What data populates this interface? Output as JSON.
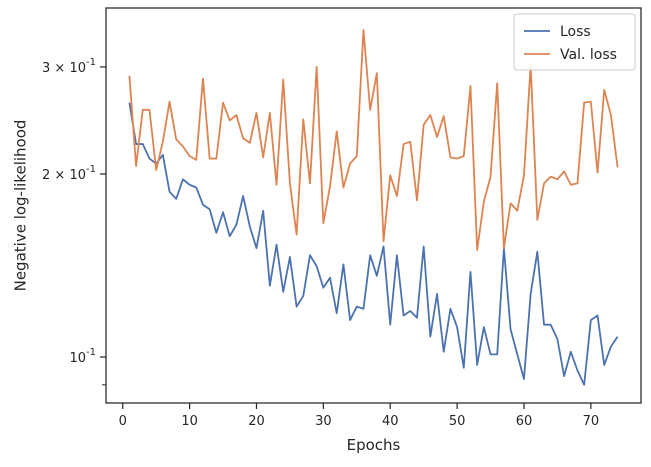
{
  "chart_data": {
    "type": "line",
    "title": "",
    "xlabel": "Epochs",
    "ylabel": "Negative log-likelihood",
    "yscale": "log",
    "xlim": [
      -2.5,
      77.5
    ],
    "ylim": [
      0.084,
      0.375
    ],
    "xticks": [
      0,
      10,
      20,
      30,
      40,
      50,
      60,
      70
    ],
    "xtick_labels": [
      "0",
      "10",
      "20",
      "30",
      "40",
      "50",
      "60",
      "70"
    ],
    "yticks_major": [
      0.1,
      0.2,
      0.3
    ],
    "ytick_labels": [
      "10^{-1}",
      "2 × 10^{-1}",
      "3 × 10^{-1}"
    ],
    "yticks_minor": [
      0.09
    ],
    "grid": false,
    "legend_position": "top-right",
    "series": [
      {
        "name": "Loss",
        "color": "#4c72b0",
        "x": [
          1,
          2,
          3,
          4,
          5,
          6,
          7,
          8,
          9,
          10,
          11,
          12,
          13,
          14,
          15,
          16,
          17,
          18,
          19,
          20,
          21,
          22,
          23,
          24,
          25,
          26,
          27,
          28,
          29,
          30,
          31,
          32,
          33,
          34,
          35,
          36,
          37,
          38,
          39,
          40,
          41,
          42,
          43,
          44,
          45,
          46,
          47,
          48,
          49,
          50,
          51,
          52,
          53,
          54,
          55,
          56,
          57,
          58,
          59,
          60,
          61,
          62,
          63,
          64,
          65,
          66,
          67,
          68,
          69,
          70,
          71,
          72,
          73,
          74
        ],
        "values": [
          0.262,
          0.224,
          0.224,
          0.212,
          0.208,
          0.215,
          0.187,
          0.182,
          0.196,
          0.192,
          0.19,
          0.178,
          0.175,
          0.16,
          0.173,
          0.158,
          0.165,
          0.184,
          0.164,
          0.151,
          0.174,
          0.131,
          0.153,
          0.128,
          0.146,
          0.121,
          0.126,
          0.147,
          0.141,
          0.13,
          0.135,
          0.118,
          0.142,
          0.115,
          0.121,
          0.12,
          0.147,
          0.136,
          0.152,
          0.113,
          0.147,
          0.117,
          0.119,
          0.116,
          0.152,
          0.108,
          0.127,
          0.102,
          0.12,
          0.112,
          0.096,
          0.138,
          0.097,
          0.112,
          0.101,
          0.101,
          0.151,
          0.111,
          0.101,
          0.092,
          0.127,
          0.149,
          0.113,
          0.113,
          0.107,
          0.093,
          0.102,
          0.095,
          0.09,
          0.115,
          0.117,
          0.097,
          0.104,
          0.108
        ]
      },
      {
        "name": "Val. loss",
        "color": "#dd8452",
        "x": [
          1,
          2,
          3,
          4,
          5,
          6,
          7,
          8,
          9,
          10,
          11,
          12,
          13,
          14,
          15,
          16,
          17,
          18,
          19,
          20,
          21,
          22,
          23,
          24,
          25,
          26,
          27,
          28,
          29,
          30,
          31,
          32,
          33,
          34,
          35,
          36,
          37,
          38,
          39,
          40,
          41,
          42,
          43,
          44,
          45,
          46,
          47,
          48,
          49,
          50,
          51,
          52,
          53,
          54,
          55,
          56,
          57,
          58,
          59,
          60,
          61,
          62,
          63,
          64,
          65,
          66,
          67,
          68,
          69,
          70,
          71,
          72,
          73,
          74
        ],
        "values": [
          0.29,
          0.206,
          0.255,
          0.255,
          0.203,
          0.226,
          0.263,
          0.228,
          0.222,
          0.214,
          0.211,
          0.287,
          0.212,
          0.212,
          0.262,
          0.245,
          0.25,
          0.229,
          0.225,
          0.252,
          0.213,
          0.252,
          0.192,
          0.286,
          0.193,
          0.159,
          0.246,
          0.193,
          0.3,
          0.166,
          0.191,
          0.235,
          0.19,
          0.208,
          0.214,
          0.345,
          0.255,
          0.293,
          0.155,
          0.199,
          0.184,
          0.224,
          0.226,
          0.181,
          0.241,
          0.25,
          0.23,
          0.249,
          0.213,
          0.212,
          0.214,
          0.279,
          0.15,
          0.18,
          0.198,
          0.282,
          0.151,
          0.179,
          0.174,
          0.199,
          0.302,
          0.168,
          0.193,
          0.198,
          0.196,
          0.202,
          0.192,
          0.193,
          0.262,
          0.263,
          0.201,
          0.275,
          0.25,
          0.205
        ]
      }
    ]
  }
}
